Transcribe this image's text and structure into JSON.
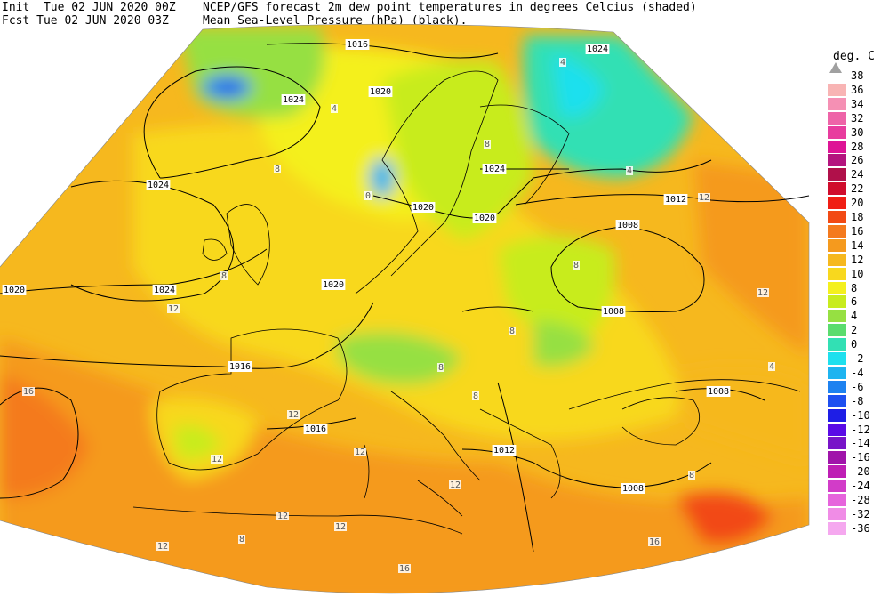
{
  "header": {
    "init_line": "Init  Tue 02 JUN 2020 00Z",
    "fcst_line": "Fcst Tue 02 JUN 2020 03Z",
    "title_line1": "NCEP/GFS forecast 2m dew point temperatures in degrees Celcius (shaded)",
    "title_line2": "Mean Sea-Level Pressure (hPa) (black)."
  },
  "legend": {
    "title": "deg. C",
    "levels": [
      {
        "label": "38",
        "color": "#a0a0a0"
      },
      {
        "label": "36",
        "color": "#f8b4b4"
      },
      {
        "label": "34",
        "color": "#f590b4"
      },
      {
        "label": "32",
        "color": "#ee64a8"
      },
      {
        "label": "30",
        "color": "#e83c9e"
      },
      {
        "label": "28",
        "color": "#de1496"
      },
      {
        "label": "26",
        "color": "#b4147e"
      },
      {
        "label": "24",
        "color": "#b0104a"
      },
      {
        "label": "22",
        "color": "#d00c2c"
      },
      {
        "label": "20",
        "color": "#f01e14"
      },
      {
        "label": "18",
        "color": "#f24a14"
      },
      {
        "label": "16",
        "color": "#f47a1e"
      },
      {
        "label": "14",
        "color": "#f59a1e"
      },
      {
        "label": "12",
        "color": "#f6b81e"
      },
      {
        "label": "10",
        "color": "#f8d81e"
      },
      {
        "label": "8",
        "color": "#f4f01e"
      },
      {
        "label": "6",
        "color": "#c8ec1e"
      },
      {
        "label": "4",
        "color": "#96e042"
      },
      {
        "label": "2",
        "color": "#5adc6e"
      },
      {
        "label": "0",
        "color": "#32e0b4"
      },
      {
        "label": "-2",
        "color": "#1ee0ee"
      },
      {
        "label": "-4",
        "color": "#1eb4f0"
      },
      {
        "label": "-6",
        "color": "#1e82f0"
      },
      {
        "label": "-8",
        "color": "#1e50f0"
      },
      {
        "label": "-10",
        "color": "#1e1ee6"
      },
      {
        "label": "-12",
        "color": "#5a0ae6"
      },
      {
        "label": "-14",
        "color": "#7814c8"
      },
      {
        "label": "-16",
        "color": "#a014aa"
      },
      {
        "label": "-20",
        "color": "#be1eb4"
      },
      {
        "label": "-24",
        "color": "#d23cc8"
      },
      {
        "label": "-28",
        "color": "#e664dc"
      },
      {
        "label": "-32",
        "color": "#f08ce6"
      },
      {
        "label": "-36",
        "color": "#f5a8ef"
      }
    ]
  },
  "isobars": [
    {
      "label": "1016"
    },
    {
      "label": "1020"
    },
    {
      "label": "1024"
    },
    {
      "label": "1024"
    },
    {
      "label": "1024"
    },
    {
      "label": "1024"
    },
    {
      "label": "1020"
    },
    {
      "label": "1020"
    },
    {
      "label": "1024"
    },
    {
      "label": "1012"
    },
    {
      "label": "1008"
    },
    {
      "label": "1008"
    },
    {
      "label": "1020"
    },
    {
      "label": "1016"
    },
    {
      "label": "1016"
    },
    {
      "label": "1012"
    },
    {
      "label": "1008"
    },
    {
      "label": "1008"
    },
    {
      "label": "1020"
    }
  ],
  "contour_labels": [
    "4",
    "4",
    "8",
    "8",
    "0",
    "8",
    "12",
    "12",
    "12",
    "12",
    "12",
    "8",
    "4",
    "12",
    "16",
    "12",
    "8",
    "12",
    "8",
    "12",
    "16",
    "16",
    "8",
    "4",
    "8",
    "12",
    "8"
  ]
}
